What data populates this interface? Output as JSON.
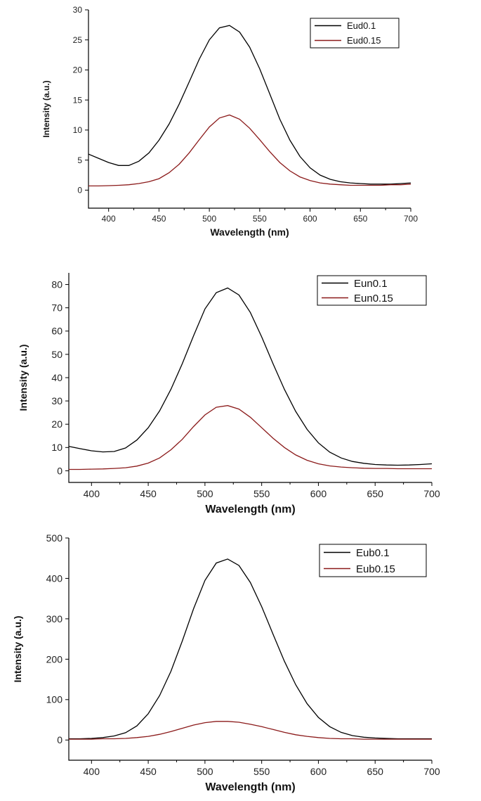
{
  "chart_data": [
    {
      "type": "line",
      "xlabel": "Wavelength (nm)",
      "ylabel": "Intensity (a.u.)",
      "xlim": [
        380,
        700
      ],
      "ylim": [
        -3,
        30
      ],
      "xticks": [
        400,
        450,
        500,
        550,
        600,
        650,
        700
      ],
      "yticks": [
        0,
        5,
        10,
        15,
        20,
        25,
        30
      ],
      "legend_position": "top-right",
      "series": [
        {
          "name": "Eud0.1",
          "color": "#000000",
          "x": [
            380,
            390,
            400,
            410,
            420,
            430,
            440,
            450,
            460,
            470,
            480,
            490,
            500,
            510,
            520,
            530,
            540,
            550,
            560,
            570,
            580,
            590,
            600,
            610,
            620,
            630,
            640,
            650,
            660,
            670,
            680,
            690,
            700
          ],
          "y": [
            6.0,
            5.3,
            4.6,
            4.1,
            4.1,
            4.8,
            6.2,
            8.3,
            11.0,
            14.3,
            18.0,
            21.8,
            25.0,
            27.0,
            27.4,
            26.3,
            23.8,
            20.2,
            16.0,
            11.8,
            8.3,
            5.6,
            3.7,
            2.5,
            1.8,
            1.4,
            1.2,
            1.1,
            1.0,
            1.0,
            1.0,
            1.1,
            1.2
          ]
        },
        {
          "name": "Eud0.15",
          "color": "#8b1a1a",
          "x": [
            380,
            390,
            400,
            410,
            420,
            430,
            440,
            450,
            460,
            470,
            480,
            490,
            500,
            510,
            520,
            530,
            540,
            550,
            560,
            570,
            580,
            590,
            600,
            610,
            620,
            630,
            640,
            650,
            660,
            670,
            680,
            690,
            700
          ],
          "y": [
            0.7,
            0.7,
            0.75,
            0.8,
            0.9,
            1.1,
            1.4,
            1.9,
            2.9,
            4.3,
            6.2,
            8.4,
            10.5,
            12.0,
            12.5,
            11.8,
            10.3,
            8.4,
            6.4,
            4.6,
            3.2,
            2.2,
            1.6,
            1.2,
            1.0,
            0.9,
            0.8,
            0.8,
            0.8,
            0.8,
            0.9,
            0.9,
            1.0
          ]
        }
      ]
    },
    {
      "type": "line",
      "xlabel": "Wavelength (nm)",
      "ylabel": "Intensity (a.u.)",
      "xlim": [
        380,
        700
      ],
      "ylim": [
        -5,
        85
      ],
      "xticks": [
        400,
        450,
        500,
        550,
        600,
        650,
        700
      ],
      "yticks": [
        0,
        10,
        20,
        30,
        40,
        50,
        60,
        70,
        80
      ],
      "legend_position": "top-right",
      "series": [
        {
          "name": "Eun0.1",
          "color": "#000000",
          "x": [
            380,
            390,
            400,
            410,
            420,
            430,
            440,
            450,
            460,
            470,
            480,
            490,
            500,
            510,
            520,
            530,
            540,
            550,
            560,
            570,
            580,
            590,
            600,
            610,
            620,
            630,
            640,
            650,
            660,
            670,
            680,
            690,
            700
          ],
          "y": [
            10.5,
            9.5,
            8.6,
            8.1,
            8.3,
            9.8,
            13.2,
            18.5,
            25.7,
            35.0,
            46.0,
            58.0,
            69.5,
            76.5,
            78.5,
            75.5,
            68.0,
            57.5,
            46.0,
            35.0,
            25.5,
            17.8,
            12.0,
            8.0,
            5.5,
            4.0,
            3.2,
            2.7,
            2.5,
            2.4,
            2.5,
            2.7,
            3.0
          ]
        },
        {
          "name": "Eun0.15",
          "color": "#8b1a1a",
          "x": [
            380,
            390,
            400,
            410,
            420,
            430,
            440,
            450,
            460,
            470,
            480,
            490,
            500,
            510,
            520,
            530,
            540,
            550,
            560,
            570,
            580,
            590,
            600,
            610,
            620,
            630,
            640,
            650,
            660,
            670,
            680,
            690,
            700
          ],
          "y": [
            0.6,
            0.6,
            0.7,
            0.8,
            1.0,
            1.3,
            2.0,
            3.3,
            5.5,
            9.0,
            13.5,
            19.0,
            24.0,
            27.3,
            28.0,
            26.5,
            23.0,
            18.5,
            14.0,
            10.0,
            6.8,
            4.5,
            3.0,
            2.1,
            1.6,
            1.3,
            1.1,
            1.0,
            1.0,
            0.9,
            0.9,
            0.9,
            0.9
          ]
        }
      ]
    },
    {
      "type": "line",
      "xlabel": "Wavelength (nm)",
      "ylabel": "Intensity (a.u.)",
      "xlim": [
        380,
        700
      ],
      "ylim": [
        -50,
        500
      ],
      "xticks": [
        400,
        450,
        500,
        550,
        600,
        650,
        700
      ],
      "yticks": [
        0,
        100,
        200,
        300,
        400,
        500
      ],
      "legend_position": "top-right",
      "series": [
        {
          "name": "Eub0.1",
          "color": "#000000",
          "x": [
            380,
            390,
            400,
            410,
            420,
            430,
            440,
            450,
            460,
            470,
            480,
            490,
            500,
            510,
            520,
            530,
            540,
            550,
            560,
            570,
            580,
            590,
            600,
            610,
            620,
            630,
            640,
            650,
            660,
            670,
            680,
            690,
            700
          ],
          "y": [
            3,
            3,
            4,
            6,
            10,
            18,
            35,
            65,
            110,
            170,
            245,
            325,
            395,
            438,
            448,
            432,
            390,
            330,
            262,
            195,
            137,
            90,
            56,
            33,
            19,
            11,
            7,
            5,
            4,
            3,
            3,
            3,
            3
          ]
        },
        {
          "name": "Eub0.15",
          "color": "#8b1a1a",
          "x": [
            380,
            390,
            400,
            410,
            420,
            430,
            440,
            450,
            460,
            470,
            480,
            490,
            500,
            510,
            520,
            530,
            540,
            550,
            560,
            570,
            580,
            590,
            600,
            610,
            620,
            630,
            640,
            650,
            660,
            670,
            680,
            690,
            700
          ],
          "y": [
            2,
            2,
            2,
            3,
            3,
            4,
            6,
            9,
            14,
            21,
            29,
            37,
            43,
            46,
            46,
            44,
            39,
            33,
            26,
            19,
            13,
            9,
            6,
            4,
            3,
            3,
            2,
            2,
            2,
            2,
            2,
            2,
            2
          ]
        }
      ]
    }
  ]
}
